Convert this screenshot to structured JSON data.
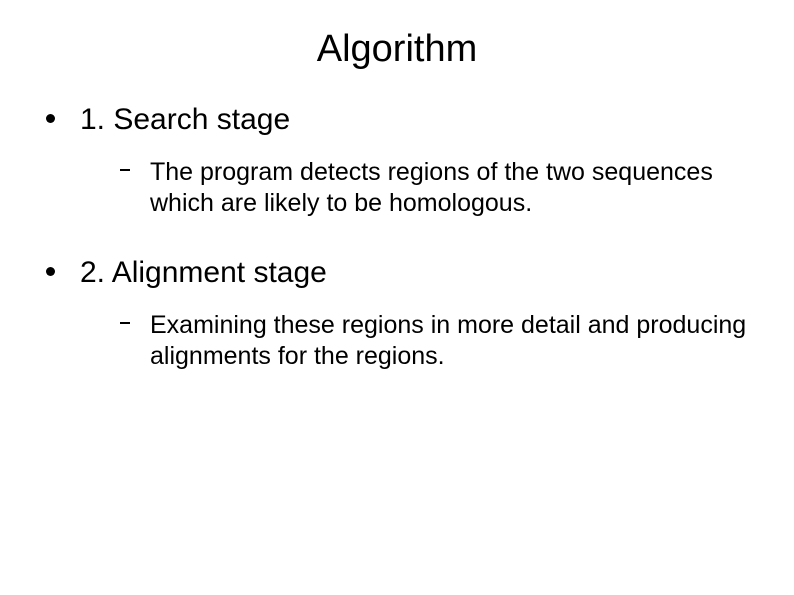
{
  "slide": {
    "title": "Algorithm",
    "title_fontsize": 38,
    "body_fontsize_level1": 30,
    "body_fontsize_level2": 25,
    "background_color": "#ffffff",
    "text_color": "#000000",
    "font_family": "Arial",
    "items": [
      {
        "heading": "1. Search stage",
        "sub": [
          "The program detects regions of the two sequences which are likely to be homologous."
        ]
      },
      {
        "heading": "2. Alignment stage",
        "sub": [
          "Examining these regions in more detail and producing alignments for the regions."
        ]
      }
    ]
  }
}
